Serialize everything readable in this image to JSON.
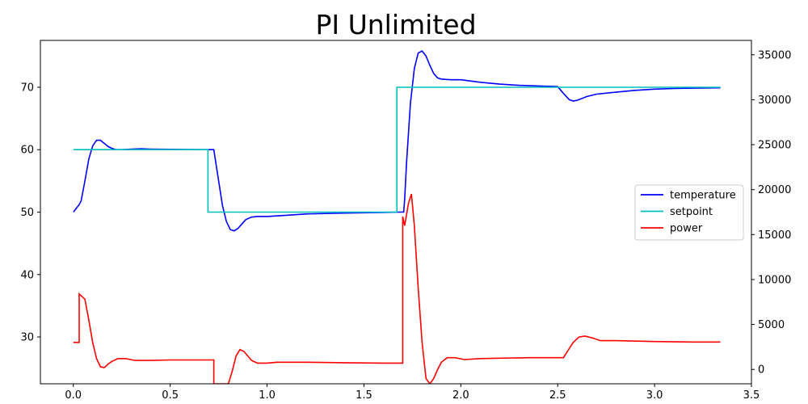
{
  "chart_data": {
    "type": "line",
    "title": "PI Unlimited",
    "xlabel": "",
    "ylabel": "",
    "y2label": "",
    "xlim": [
      -0.17,
      3.5
    ],
    "ylim": [
      22.5,
      77.5
    ],
    "y2lim": [
      -1600,
      36600
    ],
    "xticks": [
      "0.0",
      "0.5",
      "1.0",
      "1.5",
      "2.0",
      "2.5",
      "3.0",
      "3.5"
    ],
    "yticks": [
      "30",
      "40",
      "50",
      "60",
      "70"
    ],
    "y2ticks": [
      "0",
      "5000",
      "10000",
      "15000",
      "20000",
      "25000",
      "30000",
      "35000"
    ],
    "grid": false,
    "legend_position": "center-right",
    "series": [
      {
        "name": "temperature",
        "axis": "left",
        "color": "#0000ff",
        "points": [
          [
            0.0,
            50.0
          ],
          [
            0.03,
            51.2
          ],
          [
            0.04,
            51.8
          ],
          [
            0.06,
            55.0
          ],
          [
            0.08,
            58.5
          ],
          [
            0.1,
            60.6
          ],
          [
            0.12,
            61.5
          ],
          [
            0.14,
            61.5
          ],
          [
            0.16,
            61.0
          ],
          [
            0.18,
            60.5
          ],
          [
            0.2,
            60.2
          ],
          [
            0.22,
            60.0
          ],
          [
            0.25,
            60.0
          ],
          [
            0.3,
            60.1
          ],
          [
            0.35,
            60.15
          ],
          [
            0.4,
            60.1
          ],
          [
            0.5,
            60.05
          ],
          [
            0.6,
            60.02
          ],
          [
            0.7,
            60.0
          ],
          [
            0.725,
            60.0
          ],
          [
            0.73,
            59.0
          ],
          [
            0.75,
            55.0
          ],
          [
            0.77,
            51.0
          ],
          [
            0.79,
            48.5
          ],
          [
            0.81,
            47.2
          ],
          [
            0.83,
            47.0
          ],
          [
            0.85,
            47.4
          ],
          [
            0.87,
            48.1
          ],
          [
            0.89,
            48.8
          ],
          [
            0.92,
            49.2
          ],
          [
            0.95,
            49.3
          ],
          [
            1.0,
            49.3
          ],
          [
            1.1,
            49.5
          ],
          [
            1.2,
            49.7
          ],
          [
            1.4,
            49.85
          ],
          [
            1.6,
            49.95
          ],
          [
            1.69,
            50.0
          ],
          [
            1.705,
            50.0
          ],
          [
            1.71,
            52.0
          ],
          [
            1.72,
            58.0
          ],
          [
            1.74,
            67.5
          ],
          [
            1.76,
            73.0
          ],
          [
            1.78,
            75.5
          ],
          [
            1.8,
            75.8
          ],
          [
            1.82,
            75.0
          ],
          [
            1.84,
            73.5
          ],
          [
            1.86,
            72.2
          ],
          [
            1.88,
            71.5
          ],
          [
            1.9,
            71.3
          ],
          [
            1.95,
            71.2
          ],
          [
            2.0,
            71.2
          ],
          [
            2.1,
            70.8
          ],
          [
            2.2,
            70.5
          ],
          [
            2.3,
            70.3
          ],
          [
            2.4,
            70.2
          ],
          [
            2.5,
            70.1
          ],
          [
            2.53,
            69.0
          ],
          [
            2.56,
            68.0
          ],
          [
            2.58,
            67.8
          ],
          [
            2.6,
            67.9
          ],
          [
            2.65,
            68.5
          ],
          [
            2.7,
            68.9
          ],
          [
            2.8,
            69.2
          ],
          [
            2.9,
            69.5
          ],
          [
            3.0,
            69.7
          ],
          [
            3.1,
            69.8
          ],
          [
            3.2,
            69.85
          ],
          [
            3.34,
            69.9
          ]
        ]
      },
      {
        "name": "setpoint",
        "axis": "left",
        "color": "#00bfbf",
        "points": [
          [
            0.0,
            60
          ],
          [
            0.695,
            60
          ],
          [
            0.695,
            50
          ],
          [
            1.67,
            50
          ],
          [
            1.67,
            70
          ],
          [
            3.34,
            70
          ]
        ]
      },
      {
        "name": "power",
        "axis": "right",
        "color": "#ff0000",
        "points": [
          [
            0.0,
            3000
          ],
          [
            0.03,
            3000
          ],
          [
            0.03,
            8400
          ],
          [
            0.06,
            7800
          ],
          [
            0.08,
            5500
          ],
          [
            0.1,
            3000
          ],
          [
            0.12,
            1200
          ],
          [
            0.14,
            300
          ],
          [
            0.16,
            200
          ],
          [
            0.18,
            600
          ],
          [
            0.2,
            900
          ],
          [
            0.23,
            1200
          ],
          [
            0.27,
            1200
          ],
          [
            0.32,
            1000
          ],
          [
            0.4,
            1000
          ],
          [
            0.5,
            1050
          ],
          [
            0.6,
            1050
          ],
          [
            0.725,
            1050
          ],
          [
            0.725,
            -1600
          ],
          [
            0.8,
            -1600
          ],
          [
            0.82,
            -200
          ],
          [
            0.84,
            1500
          ],
          [
            0.86,
            2200
          ],
          [
            0.88,
            2000
          ],
          [
            0.9,
            1500
          ],
          [
            0.92,
            1000
          ],
          [
            0.95,
            700
          ],
          [
            1.0,
            700
          ],
          [
            1.05,
            800
          ],
          [
            1.2,
            800
          ],
          [
            1.4,
            750
          ],
          [
            1.6,
            700
          ],
          [
            1.7,
            700
          ],
          [
            1.7,
            17000
          ],
          [
            1.71,
            16000
          ],
          [
            1.73,
            18500
          ],
          [
            1.745,
            19500
          ],
          [
            1.76,
            16000
          ],
          [
            1.78,
            9000
          ],
          [
            1.8,
            3000
          ],
          [
            1.82,
            -1000
          ],
          [
            1.84,
            -1600
          ],
          [
            1.86,
            -1000
          ],
          [
            1.88,
            0
          ],
          [
            1.9,
            800
          ],
          [
            1.93,
            1300
          ],
          [
            1.97,
            1300
          ],
          [
            2.02,
            1100
          ],
          [
            2.1,
            1200
          ],
          [
            2.2,
            1250
          ],
          [
            2.35,
            1300
          ],
          [
            2.53,
            1300
          ],
          [
            2.55,
            2000
          ],
          [
            2.58,
            3000
          ],
          [
            2.61,
            3600
          ],
          [
            2.64,
            3700
          ],
          [
            2.68,
            3500
          ],
          [
            2.72,
            3200
          ],
          [
            2.8,
            3200
          ],
          [
            3.0,
            3100
          ],
          [
            3.2,
            3050
          ],
          [
            3.34,
            3050
          ]
        ]
      }
    ]
  }
}
